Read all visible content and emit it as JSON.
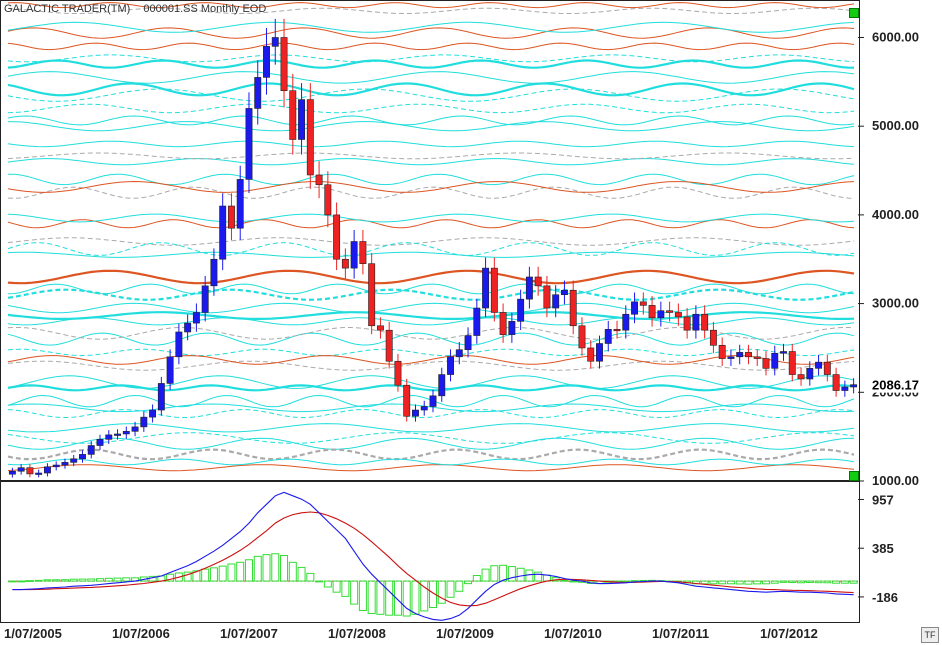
{
  "header": {
    "app_title": "GALACTIC TRADER(TM)",
    "symbol_info": "000001.SS Monthly EOD"
  },
  "footer": {
    "tf_label": "TF"
  },
  "colors": {
    "bull": "#1a1aee",
    "bear": "#ee2222",
    "cyan": "#22dddd",
    "orange": "#dd5522",
    "gray": "#aaaaaa",
    "macd": "#1a1aee",
    "signal": "#cc1111",
    "hist": "#33dd33"
  },
  "chart_data": [
    {
      "type": "candlestick",
      "title": "",
      "ylim": [
        1000,
        6400
      ],
      "yticks": [
        {
          "value": 1000,
          "label": "1000.00"
        },
        {
          "value": 2000,
          "label": "2000.00"
        },
        {
          "value": 3000,
          "label": "3000.00"
        },
        {
          "value": 4000,
          "label": "4000.00"
        },
        {
          "value": 5000,
          "label": "5000.00"
        },
        {
          "value": 6000,
          "label": "6000.00"
        }
      ],
      "last_price": {
        "value": 2086.17,
        "label": "2086.17"
      },
      "xticks": [
        "1/07/2005",
        "1/07/2006",
        "1/07/2007",
        "1/07/2008",
        "1/07/2009",
        "1/07/2010",
        "1/07/2011",
        "1/07/2012"
      ],
      "closes": [
        1110,
        1150,
        1080,
        1090,
        1160,
        1180,
        1210,
        1250,
        1300,
        1400,
        1470,
        1520,
        1530,
        1560,
        1610,
        1720,
        1800,
        2100,
        2400,
        2680,
        2780,
        2900,
        3200,
        3500,
        4100,
        3850,
        4400,
        5200,
        5550,
        5900,
        6000,
        5400,
        4850,
        5300,
        4450,
        4340,
        4000,
        3500,
        3400,
        3700,
        3450,
        2750,
        2700,
        2350,
        2080,
        1730,
        1800,
        1840,
        1960,
        2200,
        2400,
        2480,
        2640,
        2950,
        3400,
        2900,
        2650,
        2800,
        3050,
        3300,
        3200,
        2950,
        3100,
        3150,
        2750,
        2500,
        2350,
        2550,
        2710,
        2700,
        2880,
        3020,
        2980,
        2840,
        2920,
        2900,
        2850,
        2700,
        2880,
        2700,
        2530,
        2380,
        2400,
        2450,
        2400,
        2380,
        2270,
        2440,
        2460,
        2200,
        2150,
        2270,
        2340,
        2200,
        2020,
        2060,
        2086
      ]
    },
    {
      "type": "macd",
      "title": "",
      "ylim": [
        -480,
        1150
      ],
      "yticks": [
        {
          "value": 957,
          "label": "957"
        },
        {
          "value": 385,
          "label": "385"
        },
        {
          "value": -186,
          "label": "-186"
        }
      ],
      "series": [
        {
          "values": [
            -100,
            -100,
            -95,
            -90,
            -80,
            -75,
            -70,
            -60,
            -55,
            -50,
            -40,
            -30,
            -20,
            -10,
            0,
            20,
            40,
            60,
            100,
            140,
            180,
            230,
            290,
            350,
            420,
            500,
            580,
            680,
            800,
            900,
            1000,
            1040,
            1000,
            960,
            900,
            800,
            700,
            600,
            500,
            350,
            200,
            80,
            -20,
            -120,
            -220,
            -320,
            -380,
            -420,
            -450,
            -460,
            -440,
            -400,
            -320,
            -220,
            -120,
            -40,
            10,
            40,
            60,
            75,
            80,
            70,
            55,
            30,
            10,
            0,
            -20,
            -30,
            -30,
            -25,
            -20,
            -10,
            -5,
            0,
            0,
            -10,
            -20,
            -40,
            -60,
            -70,
            -80,
            -90,
            -100,
            -110,
            -120,
            -125,
            -130,
            -125,
            -120,
            -125,
            -130,
            -130,
            -135,
            -140,
            -150,
            -155,
            -160
          ]
        },
        {
          "values": [
            -100,
            -100,
            -100,
            -98,
            -95,
            -90,
            -86,
            -82,
            -78,
            -74,
            -68,
            -62,
            -55,
            -48,
            -38,
            -28,
            -15,
            0,
            20,
            45,
            75,
            110,
            150,
            195,
            245,
            300,
            360,
            430,
            510,
            590,
            680,
            740,
            780,
            800,
            810,
            800,
            770,
            730,
            680,
            620,
            545,
            460,
            370,
            280,
            180,
            90,
            10,
            -70,
            -140,
            -200,
            -250,
            -280,
            -290,
            -285,
            -260,
            -220,
            -175,
            -130,
            -90,
            -55,
            -25,
            0,
            15,
            22,
            20,
            15,
            8,
            0,
            -8,
            -13,
            -16,
            -15,
            -12,
            -8,
            -5,
            -5,
            -10,
            -18,
            -28,
            -38,
            -48,
            -58,
            -68,
            -76,
            -84,
            -92,
            -98,
            -100,
            -105,
            -108,
            -110,
            -113,
            -116,
            -120,
            -125,
            -130,
            -135
          ]
        },
        {
          "values": [
            0,
            0,
            5,
            8,
            15,
            15,
            16,
            22,
            23,
            24,
            28,
            32,
            35,
            38,
            38,
            48,
            55,
            60,
            80,
            95,
            105,
            120,
            140,
            155,
            175,
            200,
            220,
            250,
            290,
            310,
            320,
            300,
            220,
            160,
            90,
            0,
            -70,
            -130,
            -180,
            -270,
            -345,
            -380,
            -390,
            -400,
            -400,
            -410,
            -390,
            -350,
            -310,
            -260,
            -190,
            -120,
            -30,
            65,
            140,
            180,
            185,
            170,
            150,
            130,
            105,
            70,
            40,
            8,
            -10,
            -15,
            -28,
            -30,
            -22,
            -12,
            -4,
            5,
            7,
            8,
            5,
            -5,
            -10,
            -22,
            -32,
            -32,
            -32,
            -32,
            -32,
            -34,
            -36,
            -33,
            -32,
            -25,
            -15,
            -17,
            -20,
            -17,
            -19,
            -20,
            -25,
            -25,
            -25
          ]
        }
      ]
    }
  ]
}
